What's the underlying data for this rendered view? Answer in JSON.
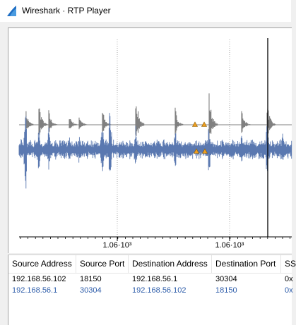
{
  "window": {
    "title": "Wireshark · RTP Player",
    "icon": "wireshark-fin-icon"
  },
  "colors": {
    "stream1_waveform": "#808080",
    "stream2_waveform": "#5a78b0",
    "stream2_text": "#2a5aa8",
    "marker_fill": "#f0a020",
    "playhead": "#000000"
  },
  "chart_data": {
    "type": "line",
    "x_tick_labels": [
      "1.06·10³",
      "1.06·10³"
    ],
    "series": [
      {
        "stream": "192.168.56.102:18150 → 192.168.56.1:30304",
        "color": "#808080"
      },
      {
        "stream": "192.168.56.1:30304 → 192.168.56.102:18150",
        "color": "#5a78b0"
      }
    ],
    "grid": "dotted vertical lines at x ticks",
    "markers": "orange triangles on both streams"
  },
  "table": {
    "columns": [
      "Source Address",
      "Source Port",
      "Destination Address",
      "Destination Port",
      "SS"
    ],
    "rows": [
      [
        "192.168.56.102",
        "18150",
        "192.168.56.1",
        "30304",
        "0x"
      ],
      [
        "192.168.56.1",
        "30304",
        "192.168.56.102",
        "18150",
        "0x"
      ]
    ]
  }
}
